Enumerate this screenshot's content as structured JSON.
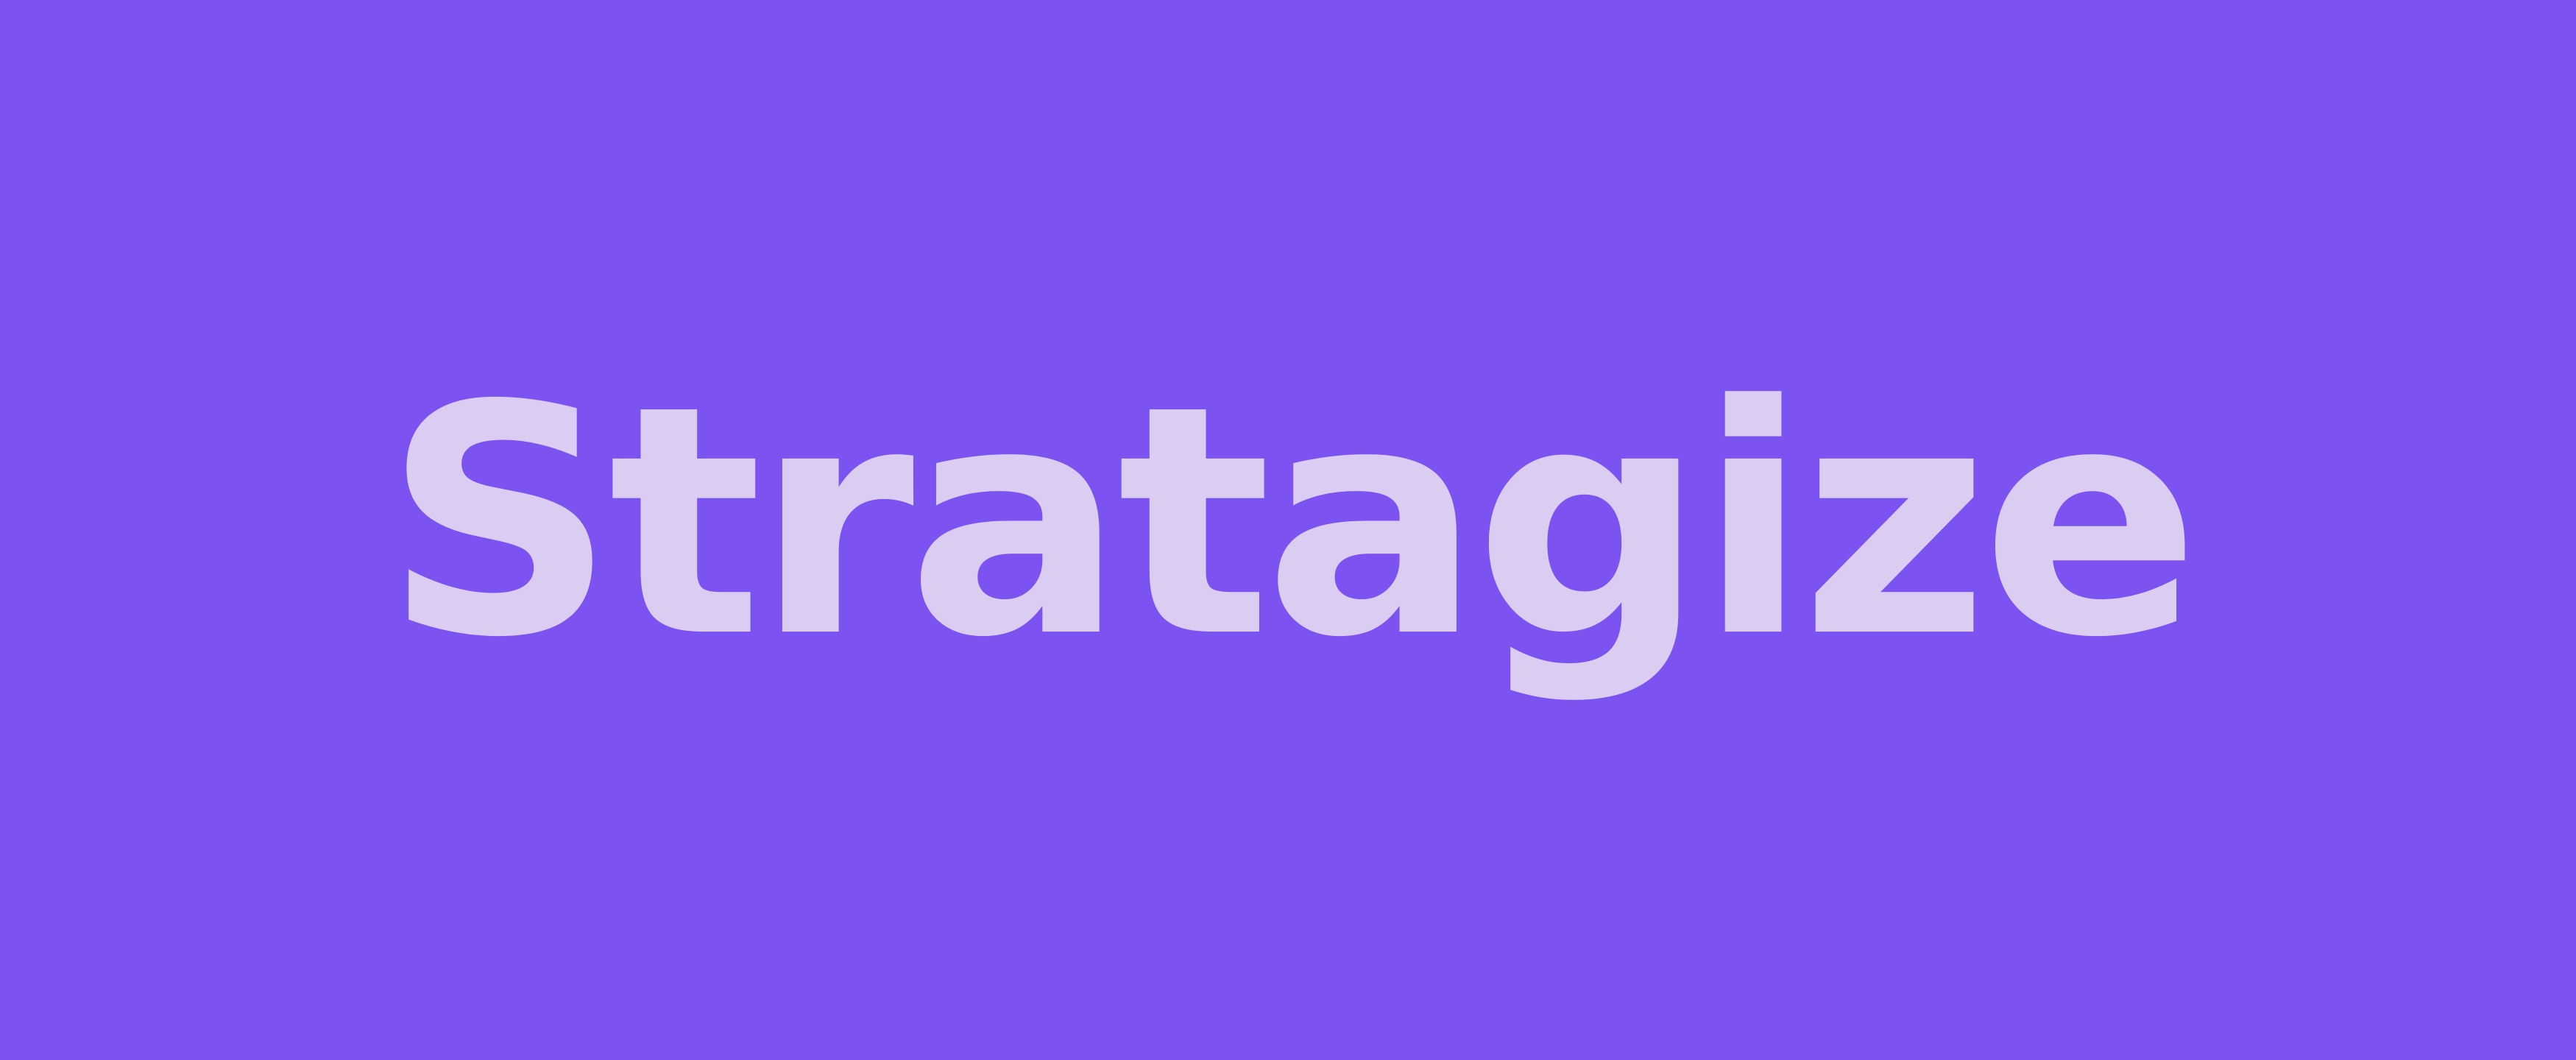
{
  "brand": {
    "name": "Stratagize"
  },
  "colors": {
    "background": "#7c53f0",
    "wordmark": "#dbcdf2"
  }
}
